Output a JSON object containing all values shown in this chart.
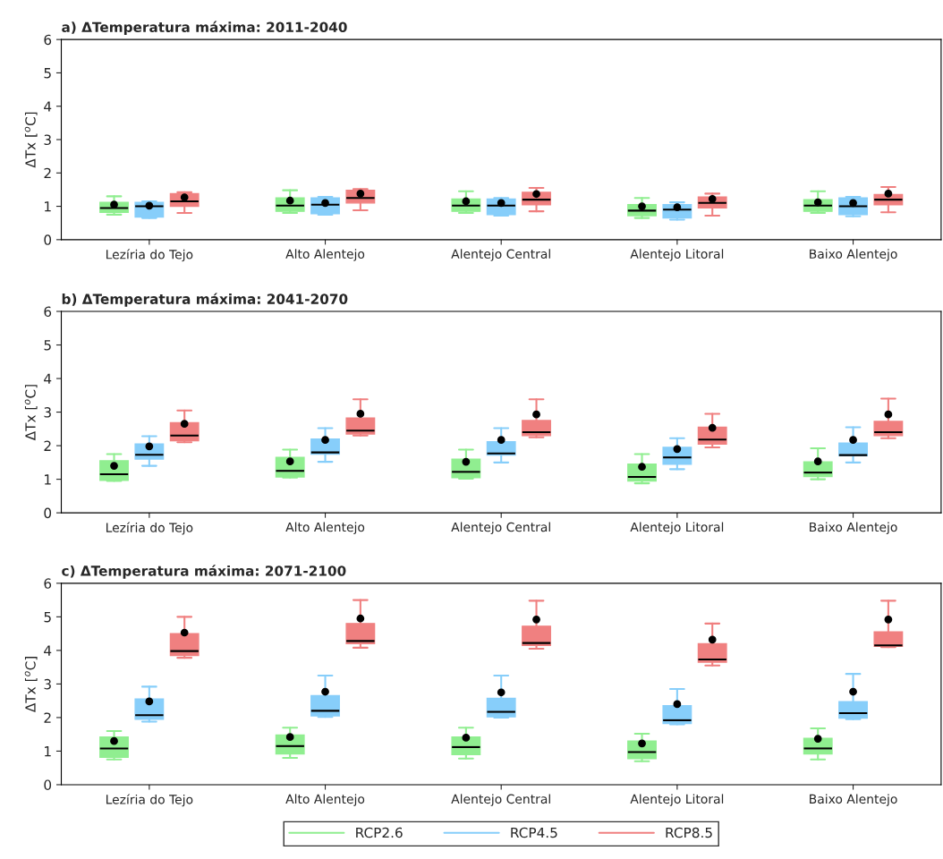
{
  "chart_data": [
    {
      "type": "box",
      "title": "a) ΔTemperatura máxima: 2011-2040",
      "ylabel": "ΔTx [$^{o}$C]",
      "categories": [
        "Lezíria do Tejo",
        "Alto Alentejo",
        "Alentejo Central",
        "Alentejo Litoral",
        "Baixo Alentejo"
      ],
      "ylim": [
        0,
        6
      ],
      "yticks": [
        0,
        1,
        2,
        3,
        4,
        5,
        6
      ],
      "series": [
        {
          "color": "#90ee90",
          "boxes": [
            {
              "low": 0.75,
              "q1": 0.82,
              "median": 0.95,
              "q3": 1.12,
              "high": 1.3,
              "mean": 1.05
            },
            {
              "low": 0.8,
              "q1": 0.85,
              "median": 1.02,
              "q3": 1.25,
              "high": 1.48,
              "mean": 1.17
            },
            {
              "low": 0.8,
              "q1": 0.85,
              "median": 1.02,
              "q3": 1.22,
              "high": 1.45,
              "mean": 1.15
            },
            {
              "low": 0.65,
              "q1": 0.72,
              "median": 0.87,
              "q3": 1.05,
              "high": 1.25,
              "mean": 1.0
            },
            {
              "low": 0.8,
              "q1": 0.85,
              "median": 1.02,
              "q3": 1.2,
              "high": 1.45,
              "mean": 1.12
            }
          ]
        },
        {
          "color": "#87cefa",
          "boxes": [
            {
              "low": 0.65,
              "q1": 0.68,
              "median": 1.0,
              "q3": 1.12,
              "high": 1.15,
              "mean": 1.02
            },
            {
              "low": 0.75,
              "q1": 0.78,
              "median": 1.05,
              "q3": 1.25,
              "high": 1.28,
              "mean": 1.1
            },
            {
              "low": 0.72,
              "q1": 0.75,
              "median": 1.02,
              "q3": 1.22,
              "high": 1.25,
              "mean": 1.1
            },
            {
              "low": 0.6,
              "q1": 0.65,
              "median": 0.9,
              "q3": 1.05,
              "high": 1.12,
              "mean": 0.97
            },
            {
              "low": 0.7,
              "q1": 0.75,
              "median": 1.0,
              "q3": 1.25,
              "high": 1.28,
              "mean": 1.1
            }
          ]
        },
        {
          "color": "#f08080",
          "boxes": [
            {
              "low": 0.8,
              "q1": 1.0,
              "median": 1.15,
              "q3": 1.38,
              "high": 1.42,
              "mean": 1.27
            },
            {
              "low": 0.88,
              "q1": 1.1,
              "median": 1.25,
              "q3": 1.48,
              "high": 1.52,
              "mean": 1.38
            },
            {
              "low": 0.85,
              "q1": 1.05,
              "median": 1.2,
              "q3": 1.42,
              "high": 1.55,
              "mean": 1.37
            },
            {
              "low": 0.72,
              "q1": 0.95,
              "median": 1.1,
              "q3": 1.28,
              "high": 1.38,
              "mean": 1.22
            },
            {
              "low": 0.82,
              "q1": 1.05,
              "median": 1.2,
              "q3": 1.35,
              "high": 1.58,
              "mean": 1.38
            }
          ]
        }
      ]
    },
    {
      "type": "box",
      "title": "b) ΔTemperatura máxima: 2041-2070",
      "ylabel": "ΔTx [$^{o}$C]",
      "categories": [
        "Lezíria do Tejo",
        "Alto Alentejo",
        "Alentejo Central",
        "Alentejo Litoral",
        "Baixo Alentejo"
      ],
      "ylim": [
        0,
        6
      ],
      "yticks": [
        0,
        1,
        2,
        3,
        4,
        5,
        6
      ],
      "series": [
        {
          "color": "#90ee90",
          "boxes": [
            {
              "low": 0.95,
              "q1": 0.97,
              "median": 1.15,
              "q3": 1.55,
              "high": 1.75,
              "mean": 1.4
            },
            {
              "low": 1.05,
              "q1": 1.07,
              "median": 1.25,
              "q3": 1.65,
              "high": 1.88,
              "mean": 1.53
            },
            {
              "low": 1.02,
              "q1": 1.05,
              "median": 1.22,
              "q3": 1.6,
              "high": 1.88,
              "mean": 1.52
            },
            {
              "low": 0.88,
              "q1": 0.95,
              "median": 1.07,
              "q3": 1.45,
              "high": 1.75,
              "mean": 1.37
            },
            {
              "low": 1.0,
              "q1": 1.08,
              "median": 1.2,
              "q3": 1.52,
              "high": 1.92,
              "mean": 1.53
            }
          ]
        },
        {
          "color": "#87cefa",
          "boxes": [
            {
              "low": 1.4,
              "q1": 1.6,
              "median": 1.73,
              "q3": 2.05,
              "high": 2.28,
              "mean": 1.98
            },
            {
              "low": 1.52,
              "q1": 1.75,
              "median": 1.8,
              "q3": 2.2,
              "high": 2.52,
              "mean": 2.17
            },
            {
              "low": 1.5,
              "q1": 1.72,
              "median": 1.77,
              "q3": 2.12,
              "high": 2.52,
              "mean": 2.17
            },
            {
              "low": 1.3,
              "q1": 1.45,
              "median": 1.65,
              "q3": 1.95,
              "high": 2.22,
              "mean": 1.9
            },
            {
              "low": 1.5,
              "q1": 1.7,
              "median": 1.72,
              "q3": 2.08,
              "high": 2.55,
              "mean": 2.17
            }
          ]
        },
        {
          "color": "#f08080",
          "boxes": [
            {
              "low": 2.1,
              "q1": 2.15,
              "median": 2.3,
              "q3": 2.68,
              "high": 3.05,
              "mean": 2.65
            },
            {
              "low": 2.3,
              "q1": 2.35,
              "median": 2.45,
              "q3": 2.82,
              "high": 3.38,
              "mean": 2.95
            },
            {
              "low": 2.25,
              "q1": 2.3,
              "median": 2.4,
              "q3": 2.75,
              "high": 3.38,
              "mean": 2.93
            },
            {
              "low": 1.95,
              "q1": 2.05,
              "median": 2.18,
              "q3": 2.55,
              "high": 2.95,
              "mean": 2.53
            },
            {
              "low": 2.22,
              "q1": 2.3,
              "median": 2.4,
              "q3": 2.72,
              "high": 3.4,
              "mean": 2.93
            }
          ]
        }
      ]
    },
    {
      "type": "box",
      "title": "c) ΔTemperatura máxima: 2071-2100",
      "ylabel": "ΔTx [$^{o}$C]",
      "categories": [
        "Lezíria do Tejo",
        "Alto Alentejo",
        "Alentejo Central",
        "Alentejo Litoral",
        "Baixo Alentejo"
      ],
      "ylim": [
        0,
        6
      ],
      "yticks": [
        0,
        1,
        2,
        3,
        4,
        5,
        6
      ],
      "legend": "bottom",
      "series": [
        {
          "name": "RCP2.6",
          "color": "#90ee90",
          "boxes": [
            {
              "low": 0.75,
              "q1": 0.82,
              "median": 1.08,
              "q3": 1.42,
              "high": 1.6,
              "mean": 1.3
            },
            {
              "low": 0.8,
              "q1": 0.92,
              "median": 1.15,
              "q3": 1.48,
              "high": 1.7,
              "mean": 1.42
            },
            {
              "low": 0.78,
              "q1": 0.9,
              "median": 1.12,
              "q3": 1.42,
              "high": 1.7,
              "mean": 1.4
            },
            {
              "low": 0.7,
              "q1": 0.78,
              "median": 0.97,
              "q3": 1.3,
              "high": 1.52,
              "mean": 1.23
            },
            {
              "low": 0.75,
              "q1": 0.92,
              "median": 1.08,
              "q3": 1.38,
              "high": 1.68,
              "mean": 1.37
            }
          ]
        },
        {
          "name": "RCP4.5",
          "color": "#87cefa",
          "boxes": [
            {
              "low": 1.88,
              "q1": 1.95,
              "median": 2.07,
              "q3": 2.55,
              "high": 2.92,
              "mean": 2.48
            },
            {
              "low": 2.02,
              "q1": 2.05,
              "median": 2.2,
              "q3": 2.65,
              "high": 3.25,
              "mean": 2.77
            },
            {
              "low": 2.0,
              "q1": 2.02,
              "median": 2.17,
              "q3": 2.57,
              "high": 3.25,
              "mean": 2.75
            },
            {
              "low": 1.8,
              "q1": 1.82,
              "median": 1.92,
              "q3": 2.35,
              "high": 2.85,
              "mean": 2.4
            },
            {
              "low": 1.95,
              "q1": 1.98,
              "median": 2.13,
              "q3": 2.47,
              "high": 3.3,
              "mean": 2.77
            }
          ]
        },
        {
          "name": "RCP8.5",
          "color": "#f08080",
          "boxes": [
            {
              "low": 3.78,
              "q1": 3.85,
              "median": 3.98,
              "q3": 4.5,
              "high": 5.0,
              "mean": 4.53
            },
            {
              "low": 4.08,
              "q1": 4.2,
              "median": 4.28,
              "q3": 4.8,
              "high": 5.5,
              "mean": 4.95
            },
            {
              "low": 4.05,
              "q1": 4.15,
              "median": 4.22,
              "q3": 4.72,
              "high": 5.48,
              "mean": 4.92
            },
            {
              "low": 3.55,
              "q1": 3.65,
              "median": 3.73,
              "q3": 4.2,
              "high": 4.8,
              "mean": 4.32
            },
            {
              "low": 4.1,
              "q1": 4.12,
              "median": 4.15,
              "q3": 4.55,
              "high": 5.48,
              "mean": 4.92
            }
          ]
        }
      ]
    }
  ]
}
